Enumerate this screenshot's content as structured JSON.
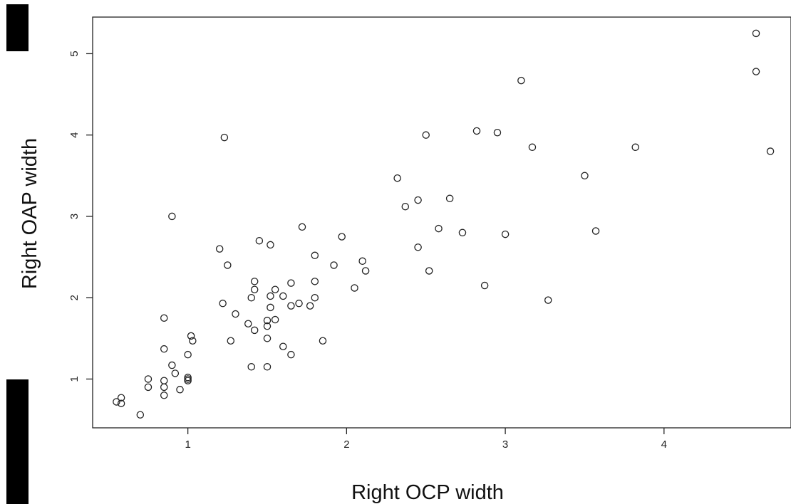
{
  "chart_data": {
    "type": "scatter",
    "xlabel": "Right OCP width",
    "ylabel": "Right OAP width",
    "xlim": [
      0.4,
      4.8
    ],
    "ylim": [
      0.4,
      5.45
    ],
    "x_ticks": [
      1,
      2,
      3,
      4
    ],
    "y_ticks": [
      1,
      2,
      3,
      4,
      5
    ],
    "x_tick_labels": [
      "1",
      "2",
      "3",
      "4"
    ],
    "y_tick_labels": [
      "1",
      "2",
      "3",
      "4",
      "5"
    ],
    "grid": false,
    "legend": "none",
    "marker": "open-circle",
    "colors": {
      "marker": "#222222",
      "axis": "#222222",
      "background": "#ffffff",
      "edge_bars": "#000000"
    },
    "points": [
      [
        0.55,
        0.72
      ],
      [
        0.58,
        0.77
      ],
      [
        0.58,
        0.7
      ],
      [
        0.7,
        0.56
      ],
      [
        0.75,
        1.0
      ],
      [
        0.75,
        0.9
      ],
      [
        0.85,
        0.98
      ],
      [
        0.85,
        0.9
      ],
      [
        0.85,
        0.8
      ],
      [
        0.85,
        1.75
      ],
      [
        0.85,
        1.37
      ],
      [
        0.9,
        1.17
      ],
      [
        0.9,
        3.0
      ],
      [
        0.92,
        1.07
      ],
      [
        0.95,
        0.87
      ],
      [
        1.0,
        1.3
      ],
      [
        1.0,
        1.02
      ],
      [
        1.0,
        1.0
      ],
      [
        1.0,
        0.98
      ],
      [
        1.02,
        1.53
      ],
      [
        1.03,
        1.47
      ],
      [
        1.2,
        2.6
      ],
      [
        1.22,
        1.93
      ],
      [
        1.23,
        3.97
      ],
      [
        1.25,
        2.4
      ],
      [
        1.27,
        1.47
      ],
      [
        1.3,
        1.8
      ],
      [
        1.38,
        1.68
      ],
      [
        1.4,
        2.0
      ],
      [
        1.4,
        1.15
      ],
      [
        1.42,
        2.2
      ],
      [
        1.42,
        2.1
      ],
      [
        1.42,
        1.6
      ],
      [
        1.45,
        2.7
      ],
      [
        1.5,
        1.72
      ],
      [
        1.5,
        1.65
      ],
      [
        1.5,
        1.5
      ],
      [
        1.5,
        1.15
      ],
      [
        1.52,
        2.65
      ],
      [
        1.52,
        2.02
      ],
      [
        1.52,
        1.88
      ],
      [
        1.55,
        2.1
      ],
      [
        1.55,
        1.73
      ],
      [
        1.6,
        2.02
      ],
      [
        1.6,
        1.4
      ],
      [
        1.65,
        2.18
      ],
      [
        1.65,
        1.9
      ],
      [
        1.65,
        1.3
      ],
      [
        1.7,
        1.93
      ],
      [
        1.72,
        2.87
      ],
      [
        1.77,
        1.9
      ],
      [
        1.8,
        2.52
      ],
      [
        1.8,
        2.2
      ],
      [
        1.8,
        2.0
      ],
      [
        1.85,
        1.47
      ],
      [
        1.92,
        2.4
      ],
      [
        1.97,
        2.75
      ],
      [
        2.05,
        2.12
      ],
      [
        2.1,
        2.45
      ],
      [
        2.12,
        2.33
      ],
      [
        2.32,
        3.47
      ],
      [
        2.37,
        3.12
      ],
      [
        2.45,
        3.2
      ],
      [
        2.45,
        2.62
      ],
      [
        2.5,
        4.0
      ],
      [
        2.52,
        2.33
      ],
      [
        2.58,
        2.85
      ],
      [
        2.65,
        3.22
      ],
      [
        2.73,
        2.8
      ],
      [
        2.82,
        4.05
      ],
      [
        2.87,
        2.15
      ],
      [
        2.95,
        4.03
      ],
      [
        3.0,
        2.78
      ],
      [
        3.1,
        4.67
      ],
      [
        3.17,
        3.85
      ],
      [
        3.27,
        1.97
      ],
      [
        3.5,
        3.5
      ],
      [
        3.57,
        2.82
      ],
      [
        3.82,
        3.85
      ],
      [
        4.58,
        5.25
      ],
      [
        4.58,
        4.78
      ],
      [
        4.67,
        3.8
      ]
    ]
  }
}
